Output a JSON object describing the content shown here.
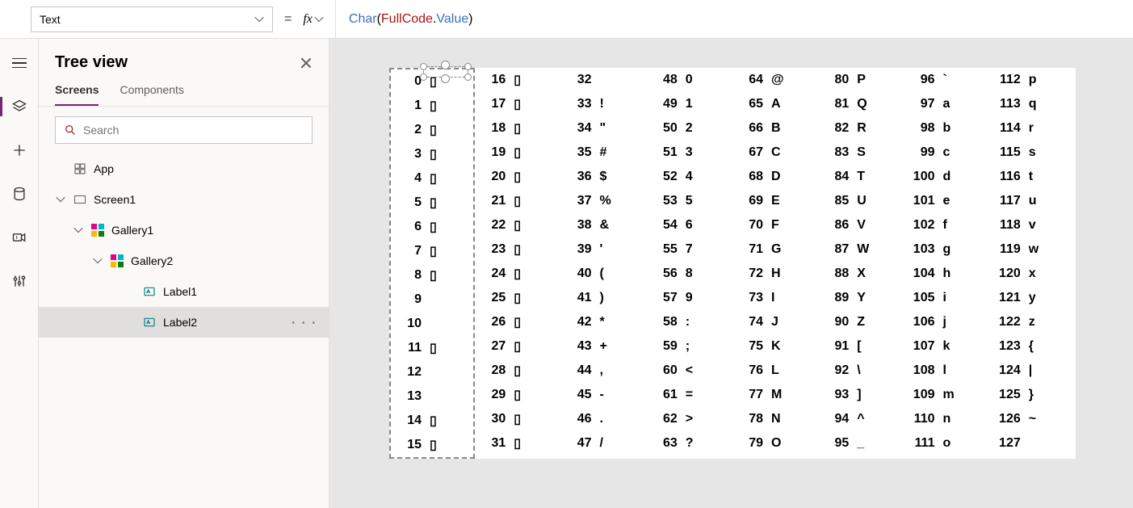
{
  "topbar": {
    "property_select": "Text",
    "equals": "=",
    "fx_label": "fx",
    "formula_tokens": [
      {
        "t": "fn",
        "v": "Char"
      },
      {
        "t": "plain",
        "v": "( "
      },
      {
        "t": "obj",
        "v": "FullCode"
      },
      {
        "t": "plain",
        "v": "."
      },
      {
        "t": "mem",
        "v": "Value"
      },
      {
        "t": "plain",
        "v": " )"
      }
    ]
  },
  "rail": {
    "items": [
      {
        "name": "hamburger-icon",
        "active": false
      },
      {
        "name": "treeview-icon",
        "active": true
      },
      {
        "name": "insert-icon",
        "active": false
      },
      {
        "name": "data-icon",
        "active": false
      },
      {
        "name": "media-icon",
        "active": false
      },
      {
        "name": "advanced-icon",
        "active": false
      }
    ]
  },
  "tree": {
    "title": "Tree view",
    "tabs": [
      {
        "label": "Screens",
        "active": true
      },
      {
        "label": "Components",
        "active": false
      }
    ],
    "search_placeholder": "Search",
    "nodes": [
      {
        "id": "app",
        "label": "App",
        "indent": 0,
        "icon": "app",
        "expanded": null,
        "selected": false
      },
      {
        "id": "screen1",
        "label": "Screen1",
        "indent": 1,
        "icon": "screen",
        "expanded": true,
        "selected": false
      },
      {
        "id": "gallery1",
        "label": "Gallery1",
        "indent": 2,
        "icon": "gallery",
        "expanded": true,
        "selected": false
      },
      {
        "id": "gallery2",
        "label": "Gallery2",
        "indent": 3,
        "icon": "gallery",
        "expanded": true,
        "selected": false
      },
      {
        "id": "label1",
        "label": "Label1",
        "indent": 4,
        "icon": "label",
        "expanded": null,
        "selected": false
      },
      {
        "id": "label2",
        "label": "Label2",
        "indent": 4,
        "icon": "label",
        "expanded": null,
        "selected": true
      }
    ]
  },
  "ascii": {
    "columns": [
      [
        [
          0,
          "▯"
        ],
        [
          1,
          "▯"
        ],
        [
          2,
          "▯"
        ],
        [
          3,
          "▯"
        ],
        [
          4,
          "▯"
        ],
        [
          5,
          "▯"
        ],
        [
          6,
          "▯"
        ],
        [
          7,
          "▯"
        ],
        [
          8,
          "▯"
        ],
        [
          9,
          ""
        ],
        [
          10,
          ""
        ],
        [
          11,
          "▯"
        ],
        [
          12,
          ""
        ],
        [
          13,
          ""
        ],
        [
          14,
          "▯"
        ],
        [
          15,
          "▯"
        ]
      ],
      [
        [
          16,
          "▯"
        ],
        [
          17,
          "▯"
        ],
        [
          18,
          "▯"
        ],
        [
          19,
          "▯"
        ],
        [
          20,
          "▯"
        ],
        [
          21,
          "▯"
        ],
        [
          22,
          "▯"
        ],
        [
          23,
          "▯"
        ],
        [
          24,
          "▯"
        ],
        [
          25,
          "▯"
        ],
        [
          26,
          "▯"
        ],
        [
          27,
          "▯"
        ],
        [
          28,
          "▯"
        ],
        [
          29,
          "▯"
        ],
        [
          30,
          "▯"
        ],
        [
          31,
          "▯"
        ]
      ],
      [
        [
          32,
          ""
        ],
        [
          33,
          "!"
        ],
        [
          34,
          "\""
        ],
        [
          35,
          "#"
        ],
        [
          36,
          "$"
        ],
        [
          37,
          "%"
        ],
        [
          38,
          "&"
        ],
        [
          39,
          "'"
        ],
        [
          40,
          "("
        ],
        [
          41,
          ")"
        ],
        [
          42,
          "*"
        ],
        [
          43,
          "+"
        ],
        [
          44,
          ","
        ],
        [
          45,
          "-"
        ],
        [
          46,
          "."
        ],
        [
          47,
          "/"
        ]
      ],
      [
        [
          48,
          "0"
        ],
        [
          49,
          "1"
        ],
        [
          50,
          "2"
        ],
        [
          51,
          "3"
        ],
        [
          52,
          "4"
        ],
        [
          53,
          "5"
        ],
        [
          54,
          "6"
        ],
        [
          55,
          "7"
        ],
        [
          56,
          "8"
        ],
        [
          57,
          "9"
        ],
        [
          58,
          ":"
        ],
        [
          59,
          ";"
        ],
        [
          60,
          "<"
        ],
        [
          61,
          "="
        ],
        [
          62,
          ">"
        ],
        [
          63,
          "?"
        ]
      ],
      [
        [
          64,
          "@"
        ],
        [
          65,
          "A"
        ],
        [
          66,
          "B"
        ],
        [
          67,
          "C"
        ],
        [
          68,
          "D"
        ],
        [
          69,
          "E"
        ],
        [
          70,
          "F"
        ],
        [
          71,
          "G"
        ],
        [
          72,
          "H"
        ],
        [
          73,
          "I"
        ],
        [
          74,
          "J"
        ],
        [
          75,
          "K"
        ],
        [
          76,
          "L"
        ],
        [
          77,
          "M"
        ],
        [
          78,
          "N"
        ],
        [
          79,
          "O"
        ]
      ],
      [
        [
          80,
          "P"
        ],
        [
          81,
          "Q"
        ],
        [
          82,
          "R"
        ],
        [
          83,
          "S"
        ],
        [
          84,
          "T"
        ],
        [
          85,
          "U"
        ],
        [
          86,
          "V"
        ],
        [
          87,
          "W"
        ],
        [
          88,
          "X"
        ],
        [
          89,
          "Y"
        ],
        [
          90,
          "Z"
        ],
        [
          91,
          "["
        ],
        [
          92,
          "\\"
        ],
        [
          93,
          "]"
        ],
        [
          94,
          "^"
        ],
        [
          95,
          "_"
        ]
      ],
      [
        [
          96,
          "`"
        ],
        [
          97,
          "a"
        ],
        [
          98,
          "b"
        ],
        [
          99,
          "c"
        ],
        [
          100,
          "d"
        ],
        [
          101,
          "e"
        ],
        [
          102,
          "f"
        ],
        [
          103,
          "g"
        ],
        [
          104,
          "h"
        ],
        [
          105,
          "i"
        ],
        [
          106,
          "j"
        ],
        [
          107,
          "k"
        ],
        [
          108,
          "l"
        ],
        [
          109,
          "m"
        ],
        [
          110,
          "n"
        ],
        [
          111,
          "o"
        ]
      ],
      [
        [
          112,
          "p"
        ],
        [
          113,
          "q"
        ],
        [
          114,
          "r"
        ],
        [
          115,
          "s"
        ],
        [
          116,
          "t"
        ],
        [
          117,
          "u"
        ],
        [
          118,
          "v"
        ],
        [
          119,
          "w"
        ],
        [
          120,
          "x"
        ],
        [
          121,
          "y"
        ],
        [
          122,
          "z"
        ],
        [
          123,
          "{"
        ],
        [
          124,
          "|"
        ],
        [
          125,
          "}"
        ],
        [
          126,
          "~"
        ],
        [
          127,
          ""
        ]
      ]
    ],
    "selected_column": 0,
    "box_char": "▯",
    "colors": {
      "fn": "#3b6fb6",
      "obj": "#a31515",
      "mem": "#3b6fb6",
      "accent": "#742774"
    }
  }
}
